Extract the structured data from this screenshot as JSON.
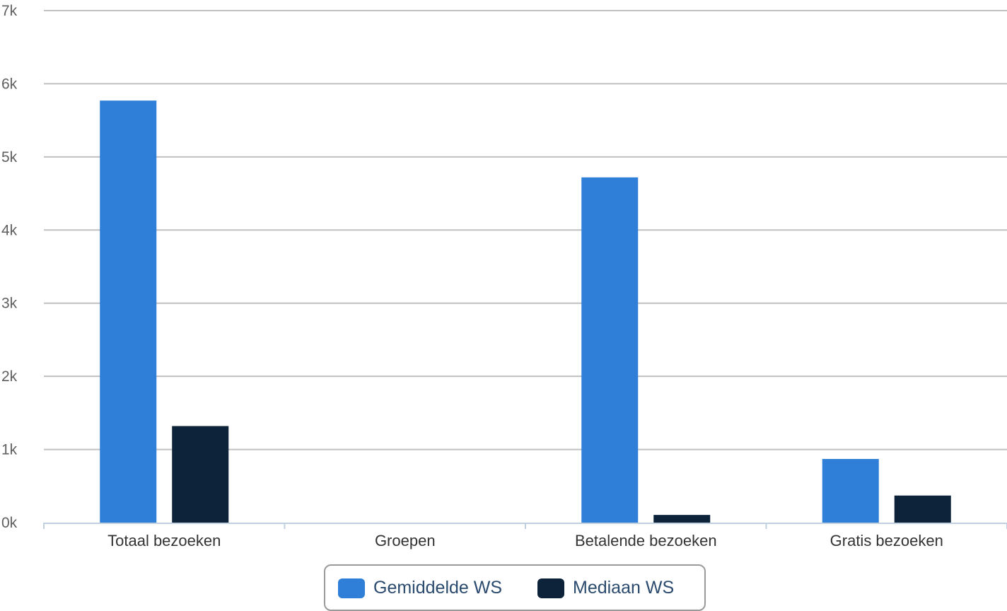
{
  "chart_data": {
    "type": "bar",
    "categories": [
      "Totaal bezoeken",
      "Groepen",
      "Betalende bezoeken",
      "Gratis bezoeken"
    ],
    "series": [
      {
        "name": "Gemiddelde WS",
        "values": [
          5770,
          0,
          4720,
          870
        ],
        "color": "#2f7ed8"
      },
      {
        "name": "Mediaan WS",
        "values": [
          1320,
          0,
          105,
          370
        ],
        "color": "#0d233a"
      }
    ],
    "y_ticks": [
      "0k",
      "1k",
      "2k",
      "3k",
      "4k",
      "5k",
      "6k",
      "7k"
    ],
    "ylim": [
      0,
      7000
    ],
    "grid": true,
    "legend_position": "bottom-center"
  }
}
